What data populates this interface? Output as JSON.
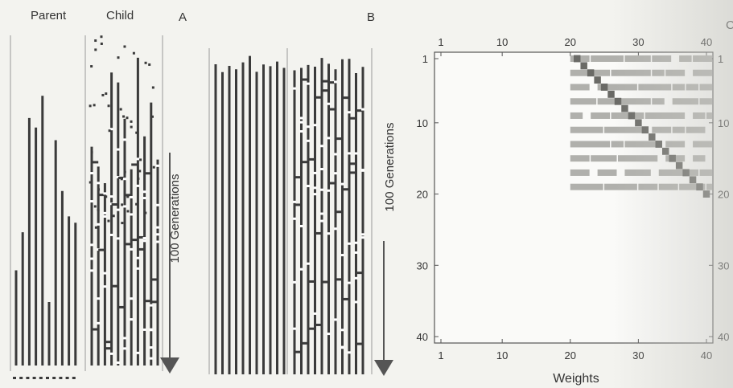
{
  "panel_a": {
    "letter": "A",
    "parent_label": "Parent",
    "child_label": "Child",
    "generations_label": "100 Generations",
    "parent_bars": [
      0.3,
      0.42,
      0.78,
      0.75,
      0.85,
      0.2,
      0.71,
      0.55,
      0.47,
      0.45
    ]
  },
  "panel_b": {
    "letter": "B",
    "generations_label": "100 Generations"
  },
  "panel_c": {
    "letter": "C",
    "x_label": "Weights",
    "top_ticks": [
      "1",
      "10",
      "20",
      "30",
      "40"
    ],
    "bottom_ticks": [
      "1",
      "10",
      "20",
      "30",
      "40"
    ],
    "left_ticks": [
      "1",
      "10",
      "20",
      "30",
      "40"
    ],
    "right_ticks": [
      "1",
      "10",
      "20",
      "30",
      "40"
    ]
  },
  "chart_data": {
    "type": "heatmap",
    "title": "",
    "xlabel": "Weights",
    "ylabel": "",
    "xlim": [
      1,
      40
    ],
    "ylim": [
      1,
      40
    ],
    "shaded_region": {
      "rows": [
        1,
        19
      ],
      "cols": [
        20,
        40
      ]
    },
    "diagonal": {
      "from": [
        21,
        1
      ],
      "to": [
        40,
        20
      ]
    },
    "colors": {
      "shade": "#b0b0ac",
      "diagonal": "#6a6a66"
    }
  }
}
